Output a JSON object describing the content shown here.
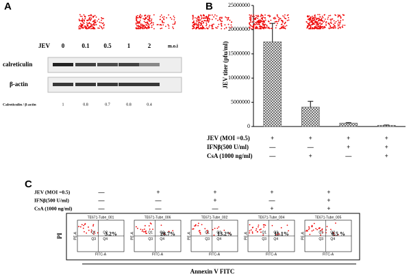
{
  "panel_a": {
    "letter": "A",
    "jev_label": "JEV",
    "moi": [
      0,
      0.1,
      0.5,
      1,
      2
    ],
    "moi_unit": "m.o.i",
    "bands": [
      "calreticulin",
      "β-actin"
    ],
    "ratio_label": "Calreticulin / β-actin",
    "ratios": [
      1,
      0.8,
      0.7,
      0.8,
      0.4
    ]
  },
  "chart_data": {
    "type": "bar",
    "letter": "B",
    "ylabel": "JEV titer (pfu/ml)",
    "categories": [
      null,
      null,
      null,
      null
    ],
    "values": [
      17500000,
      4000000,
      700000,
      250000
    ],
    "errors": [
      3800000,
      1200000,
      100000,
      50000
    ],
    "color": "#555555",
    "ylim": [
      0,
      25000000
    ],
    "yticks": [
      0,
      5000000,
      10000000,
      15000000,
      20000000,
      25000000
    ],
    "conditions": [
      {
        "label": "JEV (MOI =0.5)",
        "marks": [
          "+",
          "+",
          "+",
          "+"
        ]
      },
      {
        "label": "IFNβ(500 U/ml)",
        "marks": [
          "—",
          "—",
          "+",
          "+"
        ]
      },
      {
        "label": "CsA (1000 ng/ml)",
        "marks": [
          "—",
          "+",
          "—",
          "+"
        ]
      }
    ]
  },
  "panel_c": {
    "letter": "C",
    "conditions": [
      {
        "label": "JEV (MOI =0.5)",
        "marks": [
          "—",
          "+",
          "+",
          "+",
          "+"
        ]
      },
      {
        "label": "IFNβ(500 U/ml)",
        "marks": [
          "—",
          "—",
          "+",
          "—",
          "+"
        ]
      },
      {
        "label": "CsA (1000 ng/ml)",
        "marks": [
          "—",
          "—",
          "—",
          "+",
          "+"
        ]
      }
    ],
    "plots": [
      {
        "title": "TE671-Tube_001",
        "percent": "3.2%"
      },
      {
        "title": "TE671-Tube_006",
        "percent": "28.7%"
      },
      {
        "title": "TE671-Tube_002",
        "percent": "13.2%"
      },
      {
        "title": "TE671-Tube_004",
        "percent": "11.1%"
      },
      {
        "title": "TE671-Tube_005",
        "percent": "6.5 %"
      }
    ],
    "quadrants": [
      "Q1",
      "Q2",
      "Q3",
      "Q4"
    ],
    "x_axis": "FITC-A",
    "y_axis_small": "PE-A",
    "ylabel": "PI",
    "xlabel": "Annexin V FITC"
  }
}
